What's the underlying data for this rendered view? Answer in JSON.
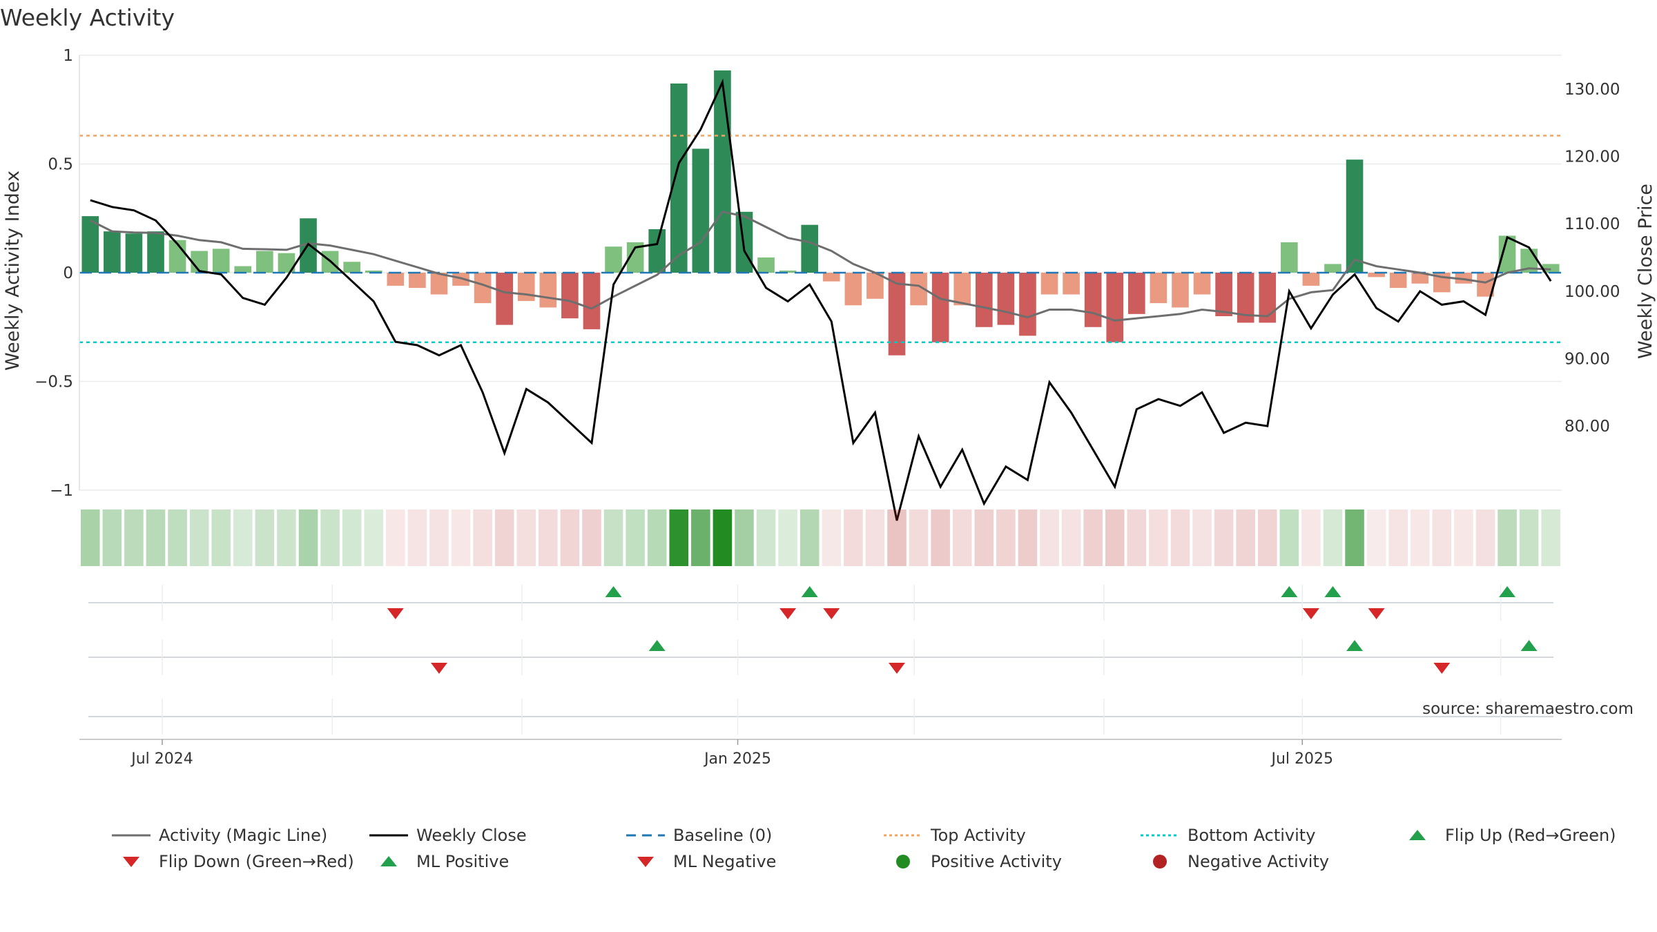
{
  "title": "Weekly Activity",
  "chart_data": {
    "type": "bar",
    "source": "source: sharemaestro.com",
    "y_left": {
      "label": "Weekly Activity Index",
      "range": [
        -1,
        1
      ],
      "ticks": [
        1,
        0.5,
        0,
        -0.5,
        -1
      ],
      "tick_labels": [
        "1",
        "0.5",
        "0",
        "−0.5",
        "−1"
      ]
    },
    "y_right": {
      "label": "Weekly Close Price",
      "range": [
        70.5,
        135
      ],
      "ticks": [
        130,
        120,
        110,
        100,
        90,
        80
      ],
      "tick_labels": [
        "130.00",
        "120.00",
        "110.00",
        "100.00",
        "90.00",
        "80.00"
      ]
    },
    "x_ticks": [
      {
        "index": 3.3,
        "label": "Jul 2024"
      },
      {
        "index": 29.7,
        "label": "Jan 2025"
      },
      {
        "index": 55.6,
        "label": "Jul 2025"
      }
    ],
    "activity": [
      0.26,
      0.19,
      0.18,
      0.19,
      0.15,
      0.1,
      0.11,
      0.03,
      0.1,
      0.09,
      0.25,
      0.1,
      0.05,
      0.01,
      -0.06,
      -0.07,
      -0.1,
      -0.06,
      -0.14,
      -0.24,
      -0.13,
      -0.16,
      -0.21,
      -0.26,
      0.12,
      0.14,
      0.2,
      0.87,
      0.57,
      0.93,
      0.28,
      0.07,
      0.01,
      0.22,
      -0.04,
      -0.15,
      -0.12,
      -0.38,
      -0.15,
      -0.32,
      -0.15,
      -0.25,
      -0.24,
      -0.29,
      -0.1,
      -0.1,
      -0.25,
      -0.32,
      -0.19,
      -0.14,
      -0.16,
      -0.1,
      -0.2,
      -0.23,
      -0.23,
      0.14,
      -0.06,
      0.04,
      0.52,
      -0.02,
      -0.07,
      -0.05,
      -0.09,
      -0.05,
      -0.11,
      0.17,
      0.11,
      0.04
    ],
    "magic_line": [
      0.24,
      0.19,
      0.185,
      0.183,
      0.17,
      0.15,
      0.14,
      0.11,
      0.108,
      0.105,
      0.135,
      0.125,
      0.105,
      0.085,
      0.055,
      0.025,
      -0.005,
      -0.025,
      -0.055,
      -0.09,
      -0.1,
      -0.115,
      -0.13,
      -0.165,
      -0.11,
      -0.06,
      -0.01,
      0.08,
      0.14,
      0.28,
      0.26,
      0.21,
      0.16,
      0.14,
      0.1,
      0.04,
      0.0,
      -0.05,
      -0.06,
      -0.12,
      -0.14,
      -0.16,
      -0.18,
      -0.205,
      -0.17,
      -0.17,
      -0.185,
      -0.22,
      -0.21,
      -0.2,
      -0.19,
      -0.17,
      -0.18,
      -0.195,
      -0.2,
      -0.12,
      -0.09,
      -0.08,
      0.06,
      0.03,
      0.015,
      0.0,
      -0.02,
      -0.03,
      -0.045,
      0.0,
      0.02,
      0.015
    ],
    "weekly_close": [
      113.5,
      112.5,
      112.0,
      110.5,
      107.0,
      103.0,
      102.5,
      99.0,
      98.0,
      102.0,
      107.0,
      104.5,
      101.5,
      98.5,
      92.5,
      92.0,
      90.5,
      92.0,
      85.0,
      76.0,
      85.5,
      83.5,
      80.5,
      77.5,
      101.0,
      106.5,
      107.0,
      119.0,
      124.0,
      131.0,
      106.0,
      100.5,
      98.5,
      101.0,
      95.5,
      77.5,
      82.0,
      66.0,
      78.5,
      71.0,
      76.5,
      68.5,
      74.0,
      72.0,
      86.5,
      82.0,
      76.5,
      71.0,
      82.5,
      84.0,
      83.0,
      85.0,
      79.0,
      80.5,
      80.0,
      100.0,
      94.5,
      99.5,
      102.5,
      97.5,
      95.5,
      100.0,
      98.0,
      98.5,
      96.5,
      108.0,
      106.5,
      101.5
    ],
    "baseline": 0,
    "top_activity": 0.63,
    "bottom_activity": -0.32,
    "events": {
      "flip_up": [
        24,
        33,
        55,
        57,
        65
      ],
      "flip_down": [
        14,
        32,
        34,
        56,
        59
      ],
      "ml_positive": [
        26,
        58,
        66
      ],
      "ml_negative": [
        16,
        37,
        62
      ]
    },
    "legend": [
      {
        "label": "Activity (Magic Line)",
        "style": "line",
        "color": "#6e6e6e"
      },
      {
        "label": "Weekly Close",
        "style": "line",
        "color": "#000000"
      },
      {
        "label": "Baseline (0)",
        "style": "dash",
        "color": "#1f77b4"
      },
      {
        "label": "Top Activity",
        "style": "dot",
        "color": "#f4a460"
      },
      {
        "label": "Bottom Activity",
        "style": "dot",
        "color": "#00cccc"
      },
      {
        "label": "Flip Up (Red→Green)",
        "style": "tri-up",
        "color": "#22a04b"
      },
      {
        "label": "Flip Down (Green→Red)",
        "style": "tri-down",
        "color": "#d62728"
      },
      {
        "label": "ML Positive",
        "style": "tri-up",
        "color": "#22a04b"
      },
      {
        "label": "ML Negative",
        "style": "tri-down",
        "color": "#d62728"
      },
      {
        "label": "Positive Activity",
        "style": "circle",
        "color": "#228b22"
      },
      {
        "label": "Negative Activity",
        "style": "circle",
        "color": "#b22222"
      }
    ]
  }
}
